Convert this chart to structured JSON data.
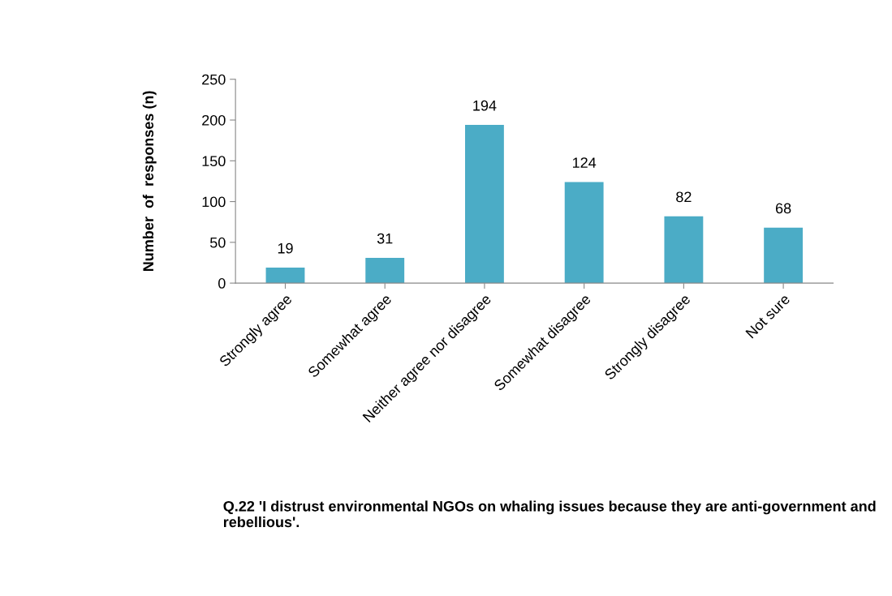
{
  "chart_data": {
    "type": "bar",
    "ylabel": "Number  of  responses (n)",
    "categories": [
      "Strongly agree",
      "Somewhat agree",
      "Neither agree nor disagree",
      "Somewhat disagree",
      "Strongly disagree",
      "Not sure"
    ],
    "values": [
      19,
      31,
      194,
      124,
      82,
      68
    ],
    "color": "#4bacc6",
    "ylim": [
      0,
      250
    ],
    "yticks": [
      0,
      50,
      100,
      150,
      200,
      250
    ],
    "grid": false,
    "data_labels": true,
    "annotations": [
      "Q.22 'I distrust environmental NGOs on whaling issues because they are anti-government and rebellious'."
    ]
  }
}
